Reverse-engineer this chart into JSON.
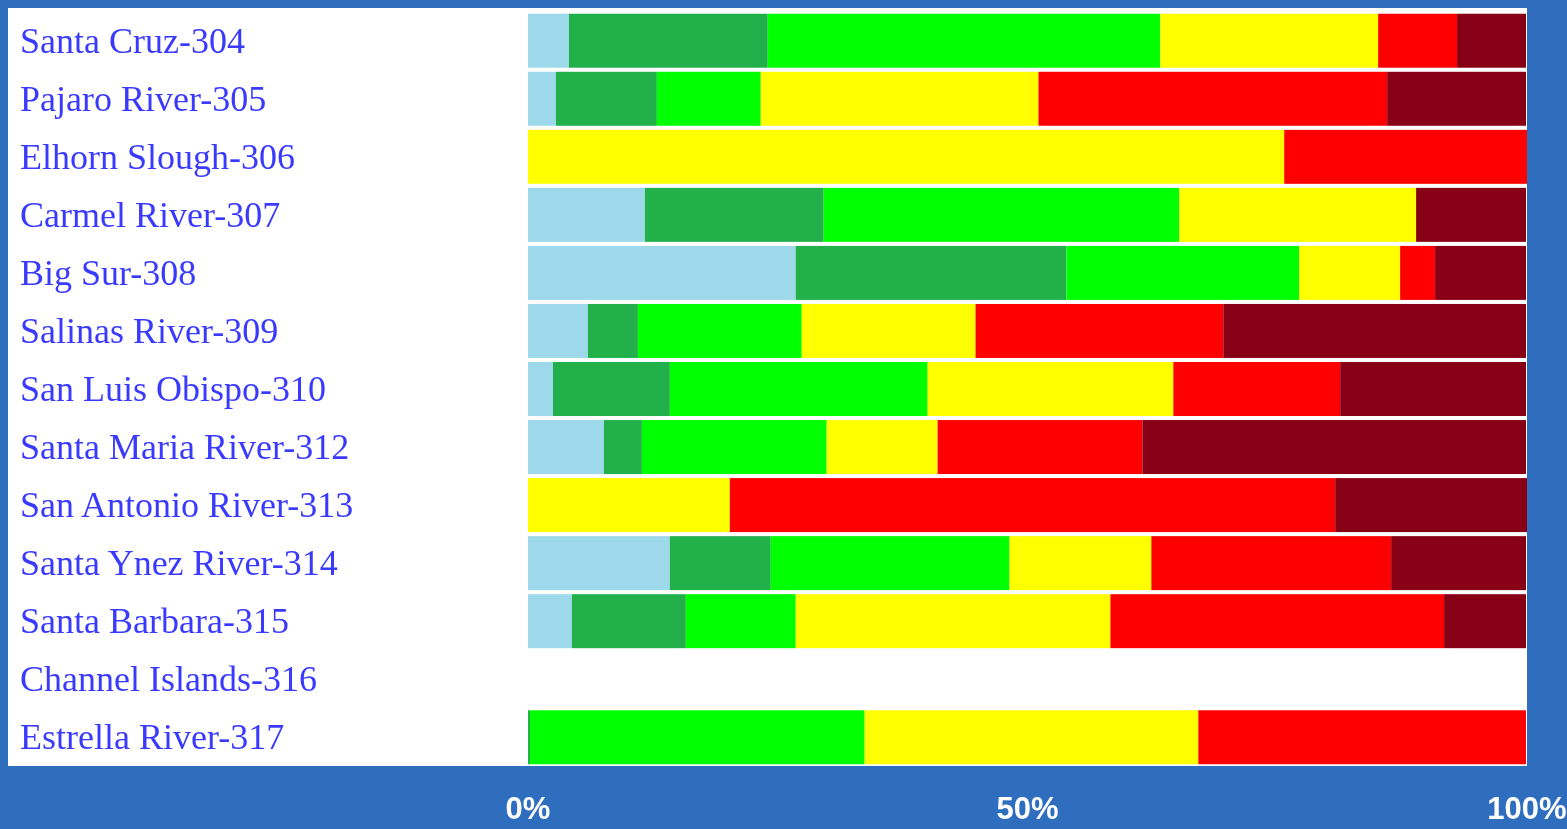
{
  "chart_data": {
    "type": "bar",
    "orientation": "horizontal",
    "stacked": true,
    "categories": [
      "Santa Cruz-304",
      "Pajaro River-305",
      "Elhorn Slough-306",
      "Carmel River-307",
      "Big Sur-308",
      "Salinas River-309",
      "San Luis Obispo-310",
      "Santa Maria River-312",
      "San Antonio River-313",
      "Santa Ynez River-314",
      "Santa Barbara-315",
      "Channel Islands-316",
      "Estrella River-317"
    ],
    "series": [
      {
        "color": "#9dd9ea",
        "values": [
          4.1,
          2.8,
          0,
          11.7,
          26.8,
          6.0,
          2.5,
          7.6,
          0,
          14.2,
          4.4,
          null,
          0
        ]
      },
      {
        "color": "#22b04a",
        "values": [
          19.9,
          10.1,
          0,
          17.9,
          27.1,
          5.0,
          11.7,
          3.8,
          0,
          10.1,
          11.4,
          null,
          0.2
        ]
      },
      {
        "color": "#00ff00",
        "values": [
          39.3,
          10.4,
          0,
          35.6,
          23.3,
          16.4,
          25.8,
          18.5,
          0,
          23.9,
          11.0,
          null,
          33.5
        ]
      },
      {
        "color": "#ffff00",
        "values": [
          21.8,
          27.8,
          75.7,
          23.7,
          10.1,
          17.4,
          24.6,
          11.1,
          20.2,
          14.2,
          31.5,
          null,
          33.4
        ]
      },
      {
        "color": "#ff0000",
        "values": [
          7.9,
          34.9,
          24.3,
          0,
          3.5,
          24.8,
          16.7,
          20.5,
          60.6,
          24.0,
          33.4,
          null,
          32.8
        ]
      },
      {
        "color": "#880015",
        "values": [
          6.9,
          13.9,
          0,
          11.0,
          9.1,
          30.3,
          18.6,
          38.4,
          19.2,
          13.5,
          8.2,
          null,
          0
        ]
      }
    ],
    "xlim": [
      0,
      100
    ],
    "xticks": [
      {
        "value": 0,
        "label": "0%"
      },
      {
        "value": 50,
        "label": "50%"
      },
      {
        "value": 100,
        "label": "100%"
      }
    ],
    "grid": false
  }
}
